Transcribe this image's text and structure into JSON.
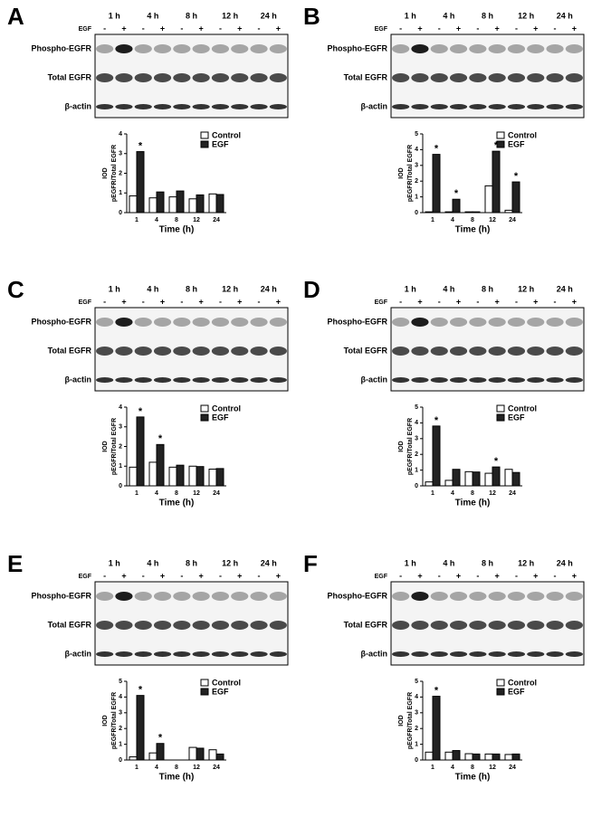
{
  "chart_data": [
    {
      "type": "bar",
      "panel": "A",
      "timepoints": [
        "1 h",
        "4 h",
        "8 h",
        "12 h",
        "24 h"
      ],
      "egf_label": "EGF",
      "egf_signs": [
        "-",
        "+",
        "-",
        "+",
        "-",
        "+",
        "-",
        "+",
        "-",
        "+"
      ],
      "blot_rows": [
        "Phospho-EGFR",
        "Total EGFR",
        "β-actin"
      ],
      "ylabel": [
        "IOD",
        "pEGFR/Total EGFR"
      ],
      "xlabel": "Time (h)",
      "categories": [
        "1",
        "4",
        "8",
        "12",
        "24"
      ],
      "series": [
        {
          "name": "Control",
          "color": "#ffffff",
          "values": [
            0.85,
            0.75,
            0.8,
            0.7,
            0.95
          ]
        },
        {
          "name": "EGF",
          "color": "#222222",
          "values": [
            3.1,
            1.05,
            1.1,
            0.9,
            0.92
          ],
          "value_labels": [
            "*",
            null,
            null,
            null,
            null
          ]
        }
      ],
      "ylim": [
        0,
        4
      ],
      "yticks": [
        0,
        1,
        2,
        3,
        4
      ]
    },
    {
      "type": "bar",
      "panel": "B",
      "timepoints": [
        "1 h",
        "4 h",
        "8 h",
        "12 h",
        "24 h"
      ],
      "egf_label": "EGF",
      "egf_signs": [
        "-",
        "+",
        "-",
        "+",
        "-",
        "+",
        "-",
        "+",
        "-",
        "+"
      ],
      "blot_rows": [
        "Phospho-EGFR",
        "Total EGFR",
        "β-actin"
      ],
      "ylabel": [
        "IOD",
        "pEGFR/Total EGFR"
      ],
      "xlabel": "Time (h)",
      "categories": [
        "1",
        "4",
        "8",
        "12",
        "24"
      ],
      "series": [
        {
          "name": "Control",
          "color": "#ffffff",
          "values": [
            0.05,
            0.05,
            0.05,
            1.7,
            0.15
          ]
        },
        {
          "name": "EGF",
          "color": "#222222",
          "values": [
            3.7,
            0.85,
            0.05,
            3.9,
            1.95
          ],
          "value_labels": [
            "*",
            "*",
            null,
            "*",
            "*"
          ]
        }
      ],
      "ylim": [
        0,
        5
      ],
      "yticks": [
        0,
        1,
        2,
        3,
        4,
        5
      ]
    },
    {
      "type": "bar",
      "panel": "C",
      "timepoints": [
        "1 h",
        "4 h",
        "8 h",
        "12 h",
        "24 h"
      ],
      "egf_label": "EGF",
      "egf_signs": [
        "-",
        "+",
        "-",
        "+",
        "-",
        "+",
        "-",
        "+",
        "-",
        "+"
      ],
      "blot_rows": [
        "Phospho-EGFR",
        "Total EGFR",
        "β-actin"
      ],
      "ylabel": [
        "IOD",
        "pEGFR/Total EGFR"
      ],
      "xlabel": "Time (h)",
      "categories": [
        "1",
        "4",
        "8",
        "12",
        "24"
      ],
      "series": [
        {
          "name": "Control",
          "color": "#ffffff",
          "values": [
            0.95,
            1.2,
            0.95,
            1.0,
            0.85
          ]
        },
        {
          "name": "EGF",
          "color": "#222222",
          "values": [
            3.5,
            2.1,
            1.05,
            0.98,
            0.88
          ],
          "value_labels": [
            "*",
            "*",
            null,
            null,
            null
          ]
        }
      ],
      "ylim": [
        0,
        4
      ],
      "yticks": [
        0,
        1,
        2,
        3,
        4
      ]
    },
    {
      "type": "bar",
      "panel": "D",
      "timepoints": [
        "1 h",
        "4 h",
        "8 h",
        "12 h",
        "24 h"
      ],
      "egf_label": "EGF",
      "egf_signs": [
        "-",
        "+",
        "-",
        "+",
        "-",
        "+",
        "-",
        "+",
        "-",
        "+"
      ],
      "blot_rows": [
        "Phospho-EGFR",
        "Total EGFR",
        "β-actin"
      ],
      "ylabel": [
        "IOD",
        "pEGFR/Total EGFR"
      ],
      "xlabel": "Time (h)",
      "categories": [
        "1",
        "4",
        "8",
        "12",
        "24"
      ],
      "series": [
        {
          "name": "Control",
          "color": "#ffffff",
          "values": [
            0.25,
            0.35,
            0.9,
            0.8,
            1.05
          ]
        },
        {
          "name": "EGF",
          "color": "#222222",
          "values": [
            3.8,
            1.05,
            0.88,
            1.2,
            0.85
          ],
          "value_labels": [
            "*",
            null,
            null,
            "*",
            null
          ]
        }
      ],
      "ylim": [
        0,
        5
      ],
      "yticks": [
        0,
        1,
        2,
        3,
        4,
        5
      ]
    },
    {
      "type": "bar",
      "panel": "E",
      "timepoints": [
        "1 h",
        "4 h",
        "8 h",
        "12 h",
        "24 h"
      ],
      "egf_label": "EGF",
      "egf_signs": [
        "-",
        "+",
        "-",
        "+",
        "-",
        "+",
        "-",
        "+",
        "-",
        "+"
      ],
      "blot_rows": [
        "Phospho-EGFR",
        "Total EGFR",
        "β-actin"
      ],
      "ylabel": [
        "IOD",
        "pEGFR/Total EGFR"
      ],
      "xlabel": "Time (h)",
      "categories": [
        "1",
        "4",
        "8",
        "12",
        "24"
      ],
      "series": [
        {
          "name": "Control",
          "color": "#ffffff",
          "values": [
            0.2,
            0.45,
            0,
            0.8,
            0.65
          ]
        },
        {
          "name": "EGF",
          "color": "#222222",
          "values": [
            4.1,
            1.05,
            0,
            0.75,
            0.38
          ],
          "value_labels": [
            "*",
            "*",
            null,
            null,
            null
          ]
        }
      ],
      "ylim": [
        0,
        5
      ],
      "yticks": [
        0,
        1,
        2,
        3,
        4,
        5
      ]
    },
    {
      "type": "bar",
      "panel": "F",
      "timepoints": [
        "1 h",
        "4 h",
        "8 h",
        "12 h",
        "24 h"
      ],
      "egf_label": "EGF",
      "egf_signs": [
        "-",
        "+",
        "-",
        "+",
        "-",
        "+",
        "-",
        "+",
        "-",
        "+"
      ],
      "blot_rows": [
        "Phospho-EGFR",
        "Total EGFR",
        "β-actin"
      ],
      "ylabel": [
        "IOD",
        "pEGFR/Total EGFR"
      ],
      "xlabel": "Time (h)",
      "categories": [
        "1",
        "4",
        "8",
        "12",
        "24"
      ],
      "series": [
        {
          "name": "Control",
          "color": "#ffffff",
          "values": [
            0.5,
            0.5,
            0.4,
            0.38,
            0.35
          ]
        },
        {
          "name": "EGF",
          "color": "#222222",
          "values": [
            4.05,
            0.6,
            0.38,
            0.38,
            0.38
          ],
          "value_labels": [
            "*",
            null,
            null,
            null,
            null
          ]
        }
      ],
      "ylim": [
        0,
        5
      ],
      "yticks": [
        0,
        1,
        2,
        3,
        4,
        5
      ]
    }
  ]
}
